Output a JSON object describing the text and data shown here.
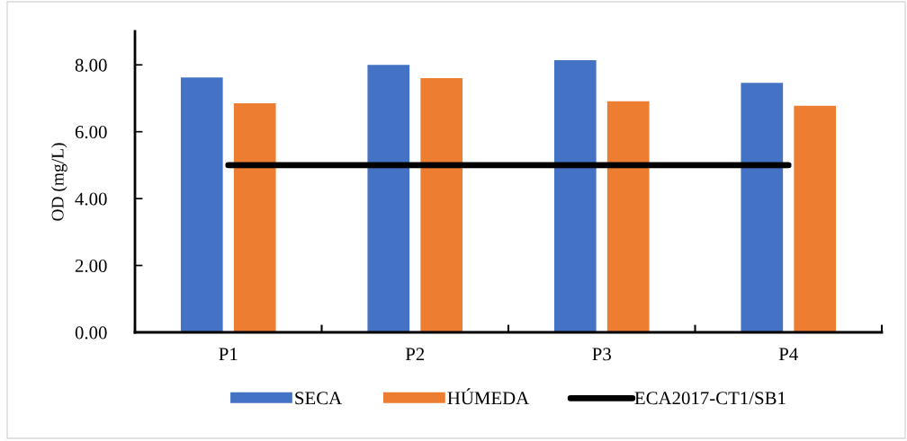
{
  "chart_data": {
    "type": "bar",
    "ylabel": "OD (mg/L)",
    "categories": [
      "P1",
      "P2",
      "P3",
      "P4"
    ],
    "series": [
      {
        "name": "SECA",
        "color": "#4472c4",
        "values": [
          7.62,
          8.0,
          8.14,
          7.46
        ]
      },
      {
        "name": "HÚMEDA",
        "color": "#ed7d31",
        "values": [
          6.85,
          7.6,
          6.91,
          6.78
        ]
      },
      {
        "name": "ECA2017-CT1/SB1",
        "type": "line",
        "color": "#000000",
        "values": [
          5,
          5,
          5,
          5
        ]
      }
    ],
    "ylim": [
      0,
      9
    ],
    "yticks": [
      {
        "value": 0,
        "label": "0.00"
      },
      {
        "value": 2,
        "label": "2.00"
      },
      {
        "value": 4,
        "label": "4.00"
      },
      {
        "value": 6,
        "label": "6.00"
      },
      {
        "value": 8,
        "label": "8.00"
      }
    ],
    "legend": "bottom"
  }
}
